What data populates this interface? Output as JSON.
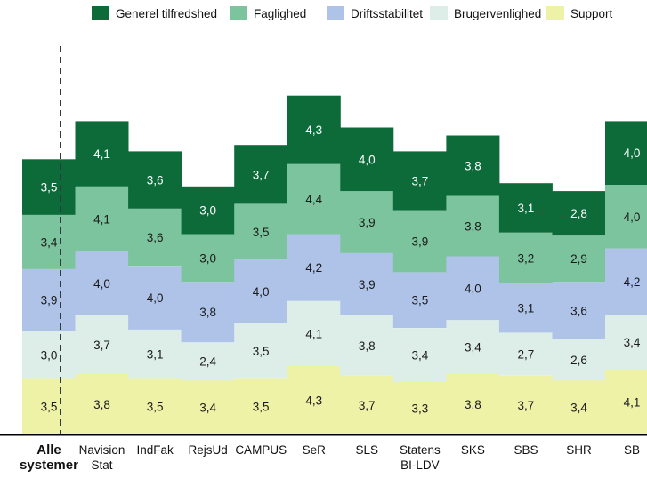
{
  "chart_data": {
    "type": "bar",
    "stacked": true,
    "legend_position": "top",
    "grid": false,
    "categories": [
      "Alle systemer",
      "Navision Stat",
      "IndFak",
      "RejsUd",
      "CAMPUS",
      "SeR",
      "SLS",
      "Statens BI-LDV",
      "SKS",
      "SBS",
      "SHR",
      "SB"
    ],
    "category_label_lines": [
      [
        "Alle",
        "systemer"
      ],
      [
        "Navision",
        "Stat"
      ],
      [
        "IndFak"
      ],
      [
        "RejsUd"
      ],
      [
        "CAMPUS"
      ],
      [
        "SeR"
      ],
      [
        "SLS"
      ],
      [
        "Statens",
        "BI-LDV"
      ],
      [
        "SKS"
      ],
      [
        "SBS"
      ],
      [
        "SHR"
      ],
      [
        "SB"
      ]
    ],
    "category_bold": [
      true,
      false,
      false,
      false,
      false,
      false,
      false,
      false,
      false,
      false,
      false,
      false
    ],
    "separator_after_index": 0,
    "series": [
      {
        "name": "Support",
        "color": "#eef2a6",
        "values": [
          3.5,
          3.8,
          3.5,
          3.4,
          3.5,
          4.3,
          3.7,
          3.3,
          3.8,
          3.7,
          3.4,
          4.1
        ]
      },
      {
        "name": "Brugervenlighed",
        "color": "#ddeee9",
        "values": [
          3.0,
          3.7,
          3.1,
          2.4,
          3.5,
          4.1,
          3.8,
          3.4,
          3.4,
          2.7,
          2.6,
          3.4
        ]
      },
      {
        "name": "Driftsstabilitet",
        "color": "#afc3e9",
        "values": [
          3.9,
          4.0,
          4.0,
          3.8,
          4.0,
          4.2,
          3.9,
          3.5,
          4.0,
          3.1,
          3.6,
          4.2
        ]
      },
      {
        "name": "Faglighed",
        "color": "#7cc49e",
        "values": [
          3.4,
          4.1,
          3.6,
          3.0,
          3.5,
          4.4,
          3.9,
          3.9,
          3.8,
          3.2,
          2.9,
          4.0
        ]
      },
      {
        "name": "Generel tilfredshed",
        "color": "#0d6b3a",
        "values": [
          3.5,
          4.1,
          3.6,
          3.0,
          3.7,
          4.3,
          4.0,
          3.7,
          3.8,
          3.1,
          2.8,
          4.0
        ]
      }
    ],
    "value_labels": [
      [
        "3,5",
        "3,8",
        "3,5",
        "3,4",
        "3,5",
        "4,3",
        "3,7",
        "3,3",
        "3,8",
        "3,7",
        "3,4",
        "4,1"
      ],
      [
        "3,0",
        "3,7",
        "3,1",
        "2,4",
        "3,5",
        "4,1",
        "3,8",
        "3,4",
        "3,4",
        "2,7",
        "2,6",
        "3,4"
      ],
      [
        "3,9",
        "4,0",
        "4,0",
        "3,8",
        "4,0",
        "4,2",
        "3,9",
        "3,5",
        "4,0",
        "3,1",
        "3,6",
        "4,2"
      ],
      [
        "3,4",
        "4,1",
        "3,6",
        "3,0",
        "3,5",
        "4,4",
        "3,9",
        "3,9",
        "3,8",
        "3,2",
        "2,9",
        "4,0"
      ],
      [
        "3,5",
        "4,1",
        "3,6",
        "3,0",
        "3,7",
        "4,3",
        "4,0",
        "3,7",
        "3,8",
        "3,1",
        "2,8",
        "4,0"
      ]
    ],
    "legend_order": [
      "Generel tilfredshed",
      "Faglighed",
      "Driftsstabilitet",
      "Brugervenlighed",
      "Support"
    ]
  }
}
